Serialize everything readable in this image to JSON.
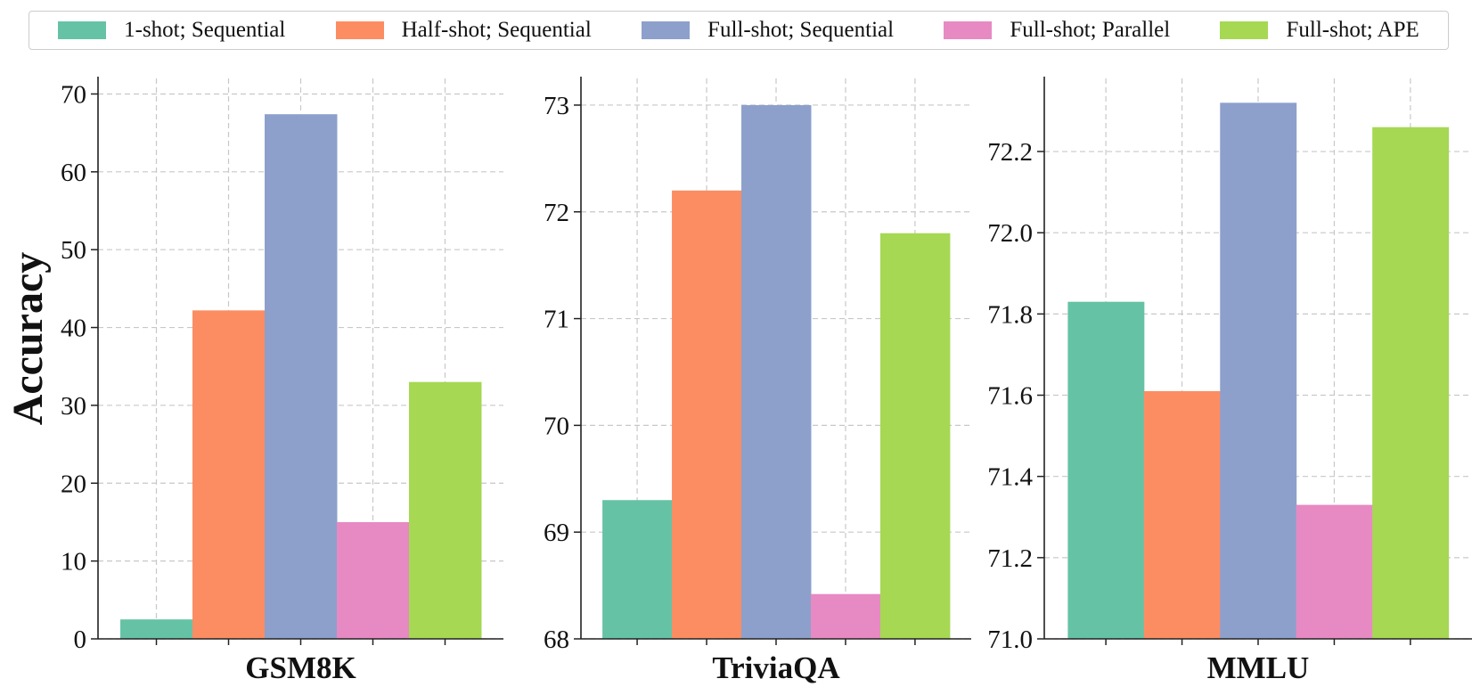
{
  "legend": [
    {
      "name": "1-shot; Sequential",
      "color": "#66c2a5"
    },
    {
      "name": "Half-shot; Sequential",
      "color": "#fc8d62"
    },
    {
      "name": "Full-shot; Sequential",
      "color": "#8da0cb"
    },
    {
      "name": "Full-shot; Parallel",
      "color": "#e78ac3"
    },
    {
      "name": "Full-shot; APE",
      "color": "#a6d854"
    }
  ],
  "ylabel": "Accuracy",
  "chart_data": [
    {
      "type": "bar",
      "title": "",
      "xlabel": "GSM8K",
      "ylabel": "Accuracy",
      "ylim": [
        0,
        72
      ],
      "yticks": [
        "0",
        "10",
        "20",
        "30",
        "40",
        "50",
        "60",
        "70"
      ],
      "ytick_values": [
        0,
        10,
        20,
        30,
        40,
        50,
        60,
        70
      ],
      "series": [
        {
          "name": "1-shot; Sequential",
          "value": 2.5
        },
        {
          "name": "Half-shot; Sequential",
          "value": 42.2
        },
        {
          "name": "Full-shot; Sequential",
          "value": 67.4
        },
        {
          "name": "Full-shot; Parallel",
          "value": 15.0
        },
        {
          "name": "Full-shot; APE",
          "value": 33.0
        }
      ],
      "grid": true
    },
    {
      "type": "bar",
      "title": "",
      "xlabel": "TriviaQA",
      "ylabel": "Accuracy",
      "ylim": [
        68,
        73.25
      ],
      "yticks": [
        "68",
        "69",
        "70",
        "71",
        "72",
        "73"
      ],
      "ytick_values": [
        68,
        69,
        70,
        71,
        72,
        73
      ],
      "series": [
        {
          "name": "1-shot; Sequential",
          "value": 69.3
        },
        {
          "name": "Half-shot; Sequential",
          "value": 72.2
        },
        {
          "name": "Full-shot; Sequential",
          "value": 73.0
        },
        {
          "name": "Full-shot; Parallel",
          "value": 68.42
        },
        {
          "name": "Full-shot; APE",
          "value": 71.8
        }
      ],
      "grid": true
    },
    {
      "type": "bar",
      "title": "",
      "xlabel": "MMLU",
      "ylabel": "Accuracy",
      "ylim": [
        71.0,
        72.38
      ],
      "yticks": [
        "71.0",
        "71.2",
        "71.4",
        "71.6",
        "71.8",
        "72.0",
        "72.2"
      ],
      "ytick_values": [
        71.0,
        71.2,
        71.4,
        71.6,
        71.8,
        72.0,
        72.2
      ],
      "series": [
        {
          "name": "1-shot; Sequential",
          "value": 71.83
        },
        {
          "name": "Half-shot; Sequential",
          "value": 71.61
        },
        {
          "name": "Full-shot; Sequential",
          "value": 72.32
        },
        {
          "name": "Full-shot; Parallel",
          "value": 71.33
        },
        {
          "name": "Full-shot; APE",
          "value": 72.26
        }
      ],
      "grid": true
    }
  ]
}
